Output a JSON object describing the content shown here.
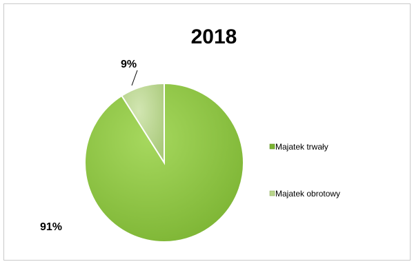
{
  "chart_data": {
    "type": "pie",
    "title": "2018",
    "slices": [
      {
        "name": "Majatek trwały",
        "value": 91,
        "label": "91%",
        "color": "#8CC640"
      },
      {
        "name": "Majatek obrotowy",
        "value": 9,
        "label": "9%",
        "color": "#B9D58C"
      }
    ],
    "legend": {
      "position": "right",
      "items": [
        "Majatek trwały",
        "Majatek obrotowy"
      ]
    }
  }
}
